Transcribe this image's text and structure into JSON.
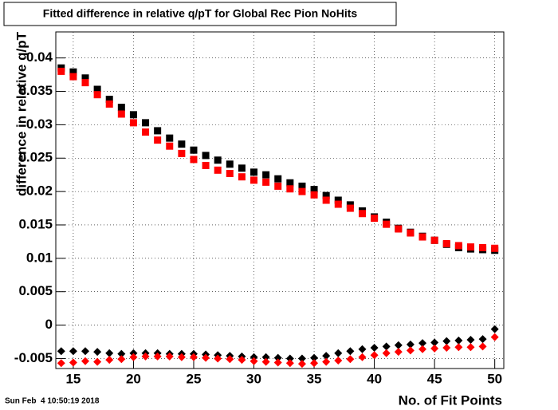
{
  "chart_data": {
    "type": "scatter",
    "title": "Fitted difference in relative q/pT for Global Rec Pion NoHits",
    "x_label": "No. of Fit Points",
    "y_label": "difference in relative q/pT",
    "timestamp": "Sun Feb  4 10:50:19 2018",
    "x": [
      14,
      15,
      16,
      17,
      18,
      19,
      20,
      21,
      22,
      23,
      24,
      25,
      26,
      27,
      28,
      29,
      30,
      31,
      32,
      33,
      34,
      35,
      36,
      37,
      38,
      39,
      40,
      41,
      42,
      43,
      44,
      45,
      46,
      47,
      48,
      49,
      50
    ],
    "series": [
      {
        "color": "#000000",
        "marker": "square",
        "values": [
          0.0385,
          0.0379,
          0.037,
          0.0353,
          0.0338,
          0.0326,
          0.0315,
          0.0303,
          0.0291,
          0.028,
          0.0271,
          0.0262,
          0.0254,
          0.0247,
          0.0241,
          0.0235,
          0.0229,
          0.0225,
          0.0219,
          0.0213,
          0.0208,
          0.0203,
          0.0194,
          0.0187,
          0.018,
          0.0171,
          0.0162,
          0.0154,
          0.0145,
          0.0139,
          0.0133,
          0.0127,
          0.0121,
          0.0116,
          0.0114,
          0.0113,
          0.0112
        ]
      },
      {
        "color": "#ff0000",
        "marker": "square",
        "values": [
          0.038,
          0.0372,
          0.0363,
          0.0345,
          0.0331,
          0.0316,
          0.0303,
          0.0289,
          0.0277,
          0.0268,
          0.0257,
          0.0248,
          0.0239,
          0.0232,
          0.0227,
          0.0222,
          0.0217,
          0.0214,
          0.0208,
          0.0204,
          0.02,
          0.0195,
          0.0187,
          0.0181,
          0.0175,
          0.0167,
          0.016,
          0.0151,
          0.0144,
          0.0138,
          0.0132,
          0.0127,
          0.0122,
          0.0119,
          0.0117,
          0.0116,
          0.0115
        ]
      },
      {
        "color": "#000000",
        "marker": "diamond",
        "values": [
          -0.0039,
          -0.0039,
          -0.0039,
          -0.004,
          -0.0042,
          -0.0043,
          -0.0042,
          -0.0042,
          -0.0042,
          -0.0043,
          -0.0043,
          -0.0043,
          -0.0044,
          -0.0045,
          -0.0046,
          -0.0047,
          -0.0048,
          -0.0048,
          -0.0049,
          -0.005,
          -0.005,
          -0.0049,
          -0.0046,
          -0.0042,
          -0.0039,
          -0.0036,
          -0.0034,
          -0.0032,
          -0.003,
          -0.0029,
          -0.0027,
          -0.0026,
          -0.0024,
          -0.0023,
          -0.0022,
          -0.0021,
          -0.0006
        ]
      },
      {
        "color": "#ff0000",
        "marker": "diamond",
        "values": [
          -0.0057,
          -0.0056,
          -0.0054,
          -0.0055,
          -0.0052,
          -0.0051,
          -0.0048,
          -0.0047,
          -0.0047,
          -0.0047,
          -0.0048,
          -0.0048,
          -0.0049,
          -0.005,
          -0.0051,
          -0.0052,
          -0.0054,
          -0.0055,
          -0.0056,
          -0.0057,
          -0.0058,
          -0.0057,
          -0.0055,
          -0.0053,
          -0.0051,
          -0.0048,
          -0.0045,
          -0.0042,
          -0.004,
          -0.0038,
          -0.0036,
          -0.0035,
          -0.0034,
          -0.0033,
          -0.0033,
          -0.0032,
          -0.0018
        ]
      }
    ],
    "xlim": [
      13.55,
      50.75
    ],
    "ylim": [
      -0.0065,
      0.0439
    ],
    "xticks": [
      15,
      20,
      25,
      30,
      35,
      40,
      45,
      50
    ],
    "yticks": [
      -0.005,
      0,
      0.005,
      0.01,
      0.015,
      0.02,
      0.025,
      0.03,
      0.035,
      0.04
    ],
    "grid": true
  }
}
